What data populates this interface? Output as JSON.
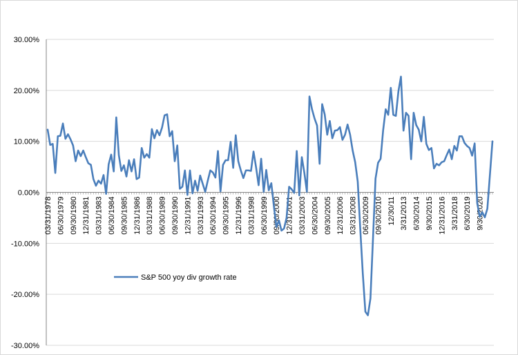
{
  "chart_data": {
    "type": "line",
    "title": "",
    "xlabel": "",
    "ylabel": "",
    "ylim": [
      -0.3,
      0.3
    ],
    "y_ticks": [
      0.3,
      0.2,
      0.1,
      0.0,
      -0.1,
      -0.2,
      -0.3
    ],
    "y_tick_labels": [
      "30.00%",
      "20.00%",
      "10.00%",
      "0.00%",
      "-10.00%",
      "-20.00%",
      "-30.00%"
    ],
    "x_tick_labels": [
      {
        "i": 0,
        "label": "03/31/1978"
      },
      {
        "i": 5,
        "label": "06/30/1979"
      },
      {
        "i": 10,
        "label": "09/30/1980"
      },
      {
        "i": 15,
        "label": "12/31/1981"
      },
      {
        "i": 20,
        "label": "03/31/1983"
      },
      {
        "i": 25,
        "label": "06/30/1984"
      },
      {
        "i": 30,
        "label": "09/30/1985"
      },
      {
        "i": 35,
        "label": "12/31/1986"
      },
      {
        "i": 40,
        "label": "03/31/1988"
      },
      {
        "i": 45,
        "label": "06/30/1989"
      },
      {
        "i": 50,
        "label": "09/30/1990"
      },
      {
        "i": 55,
        "label": "12/31/1991"
      },
      {
        "i": 60,
        "label": "03/31/1993"
      },
      {
        "i": 65,
        "label": "06/30/1994"
      },
      {
        "i": 70,
        "label": "09/30/1995"
      },
      {
        "i": 75,
        "label": "12/31/1996"
      },
      {
        "i": 80,
        "label": "03/31/1998"
      },
      {
        "i": 85,
        "label": "06/30/1999"
      },
      {
        "i": 90,
        "label": "09/30/2000"
      },
      {
        "i": 95,
        "label": "12/31/2001"
      },
      {
        "i": 100,
        "label": "03/31/2003"
      },
      {
        "i": 105,
        "label": "06/30/2004"
      },
      {
        "i": 110,
        "label": "09/30/2005"
      },
      {
        "i": 115,
        "label": "12/31/2006"
      },
      {
        "i": 120,
        "label": "03/31/2008"
      },
      {
        "i": 125,
        "label": "06/30/2009"
      },
      {
        "i": 130,
        "label": "09/30/2010"
      },
      {
        "i": 135,
        "label": "12/30/11"
      },
      {
        "i": 140,
        "label": "3/31/2013"
      },
      {
        "i": 145,
        "label": "6/30/2014"
      },
      {
        "i": 150,
        "label": "9/30/2015"
      },
      {
        "i": 155,
        "label": "12/31/2016"
      },
      {
        "i": 160,
        "label": "3/31/2018"
      },
      {
        "i": 165,
        "label": "6/30/2019"
      },
      {
        "i": 170,
        "label": "9/30/2020"
      }
    ],
    "grid": "horizontal",
    "legend_position": "lower-left",
    "series": [
      {
        "name": "S&P 500 yoy div growth rate",
        "color": "#4a7ebb",
        "values": [
          0.123,
          0.093,
          0.095,
          0.038,
          0.11,
          0.111,
          0.135,
          0.105,
          0.114,
          0.104,
          0.092,
          0.061,
          0.082,
          0.071,
          0.082,
          0.069,
          0.057,
          0.054,
          0.026,
          0.013,
          0.023,
          0.017,
          0.034,
          -0.003,
          0.055,
          0.074,
          0.041,
          0.147,
          0.073,
          0.042,
          0.053,
          0.031,
          0.063,
          0.041,
          0.065,
          0.026,
          0.029,
          0.087,
          0.068,
          0.075,
          0.068,
          0.124,
          0.106,
          0.122,
          0.112,
          0.127,
          0.151,
          0.153,
          0.11,
          0.12,
          0.061,
          0.092,
          0.007,
          0.011,
          0.043,
          -0.005,
          0.043,
          -0.002,
          0.023,
          0.003,
          0.033,
          0.017,
          0.001,
          0.023,
          0.043,
          0.039,
          0.029,
          0.081,
          0.002,
          0.054,
          0.063,
          0.063,
          0.099,
          0.048,
          0.112,
          0.061,
          0.043,
          0.028,
          0.043,
          0.043,
          0.042,
          0.08,
          0.049,
          0.014,
          0.066,
          0.001,
          0.044,
          0.004,
          0.018,
          -0.027,
          -0.068,
          -0.055,
          -0.075,
          -0.071,
          -0.05,
          0.011,
          0.006,
          -0.001,
          0.081,
          -0.006,
          0.069,
          0.038,
          0.001,
          0.188,
          0.163,
          0.145,
          0.131,
          0.056,
          0.173,
          0.153,
          0.113,
          0.14,
          0.106,
          0.121,
          0.122,
          0.128,
          0.103,
          0.113,
          0.133,
          0.113,
          0.082,
          0.059,
          0.021,
          -0.072,
          -0.16,
          -0.234,
          -0.241,
          -0.208,
          -0.091,
          0.027,
          0.058,
          0.066,
          0.122,
          0.163,
          0.152,
          0.205,
          0.152,
          0.15,
          0.198,
          0.227,
          0.121,
          0.156,
          0.15,
          0.065,
          0.156,
          0.132,
          0.123,
          0.1,
          0.148,
          0.095,
          0.083,
          0.087,
          0.047,
          0.056,
          0.053,
          0.059,
          0.061,
          0.073,
          0.084,
          0.065,
          0.091,
          0.082,
          0.11,
          0.11,
          0.097,
          0.091,
          0.087,
          0.072,
          0.096,
          -0.021,
          -0.048,
          -0.039,
          -0.049,
          -0.032,
          0.034,
          0.1
        ]
      }
    ]
  }
}
